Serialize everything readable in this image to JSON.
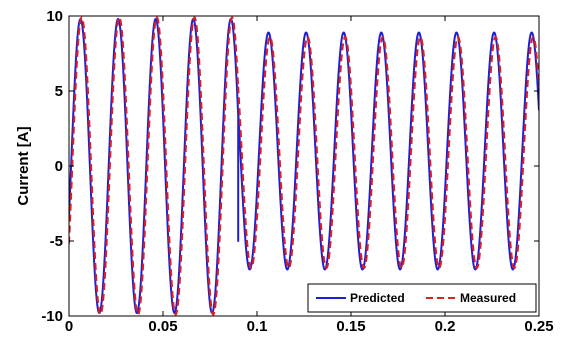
{
  "chart_data": {
    "type": "line",
    "xlabel": "",
    "ylabel": "Current [A]",
    "xlim": [
      0,
      0.25
    ],
    "ylim": [
      -10,
      10
    ],
    "xticks": [
      0,
      0.05,
      0.1,
      0.15,
      0.2,
      0.25
    ],
    "xtick_labels": [
      "0",
      "0.05",
      "0.1",
      "0.15",
      "0.2",
      "0.25"
    ],
    "yticks": [
      -10,
      -5,
      0,
      5,
      10
    ],
    "ytick_labels": [
      "-10",
      "-5",
      "0",
      "5",
      "10"
    ],
    "grid": false,
    "legend_position": "bottom-right",
    "series": [
      {
        "name": "Predicted",
        "color": "#1f1fd6",
        "style": "solid",
        "segments": [
          {
            "t_start": 0,
            "t_end": 0.09,
            "frequency_hz": 50,
            "amplitude": 9.8,
            "offset": 0,
            "phase_rad": -0.35
          },
          {
            "t_start": 0.09,
            "t_end": 0.25,
            "frequency_hz": 50,
            "amplitude": 7.9,
            "offset": 1.0,
            "phase_rad": -0.35,
            "start_value": -5.0
          }
        ]
      },
      {
        "name": "Measured",
        "color": "#e01f1f",
        "style": "dashed",
        "segments": [
          {
            "t_start": 0,
            "t_end": 0.09,
            "frequency_hz": 50,
            "amplitude": 9.9,
            "offset": 0,
            "phase_rad": -0.55
          },
          {
            "t_start": 0.09,
            "t_end": 0.25,
            "frequency_hz": 50,
            "amplitude": 7.7,
            "offset": 0.9,
            "phase_rad": -0.6
          }
        ]
      }
    ]
  }
}
